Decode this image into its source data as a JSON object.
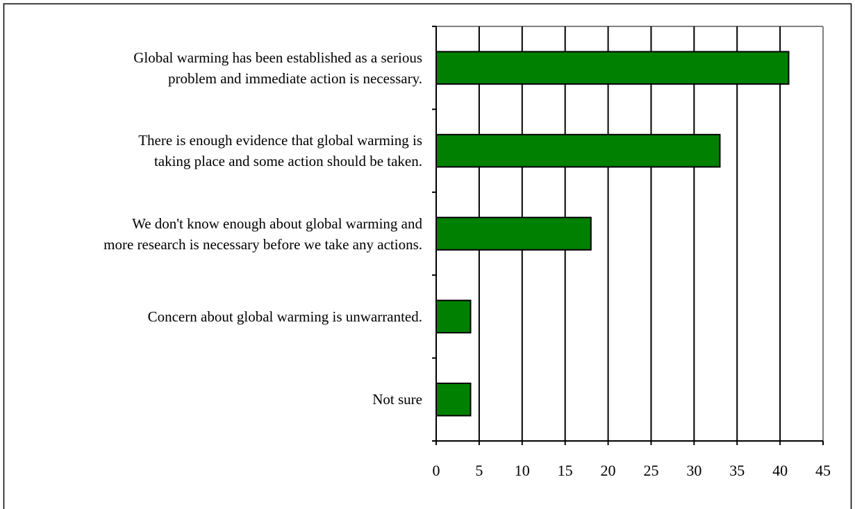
{
  "chart_data": {
    "type": "barh",
    "categories": [
      "Global warming has been established as a serious\nproblem and immediate action is necessary.",
      "There is enough evidence that global warming is\ntaking place and some action should be taken.",
      "We don't know enough about global warming and\nmore research is necessary before we take any actions.",
      "Concern about global warming is unwarranted.",
      "Not sure"
    ],
    "values": [
      41,
      33,
      18,
      4,
      4
    ],
    "color": "#008000",
    "xlim": [
      0,
      45
    ],
    "xticks": [
      0,
      5,
      10,
      15,
      20,
      25,
      30,
      35,
      40,
      45
    ],
    "grid": true
  }
}
